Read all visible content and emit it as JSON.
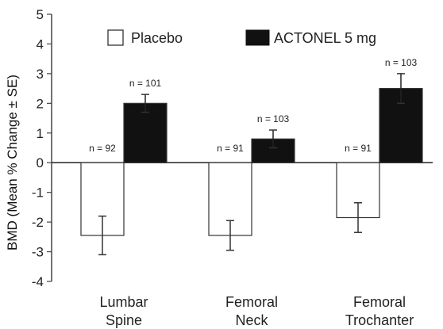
{
  "chart_data": {
    "type": "bar",
    "title": "",
    "categories": [
      "Lumbar Spine",
      "Femoral Neck",
      "Femoral Trochanter"
    ],
    "category_lines": [
      [
        "Lumbar",
        "Spine"
      ],
      [
        "Femoral",
        "Neck"
      ],
      [
        "Femoral",
        "Trochanter"
      ]
    ],
    "series": [
      {
        "name": "Placebo",
        "color": "#ffffff",
        "values": [
          -2.45,
          -2.45,
          -1.85
        ],
        "error": [
          0.65,
          0.5,
          0.5
        ],
        "n_labels": [
          "n = 92",
          "n = 91",
          "n = 91"
        ]
      },
      {
        "name": "ACTONEL 5 mg",
        "color": "#111111",
        "values": [
          2.0,
          0.8,
          2.5
        ],
        "error": [
          0.3,
          0.3,
          0.5
        ],
        "n_labels": [
          "n = 101",
          "n = 103",
          "n = 103"
        ]
      }
    ],
    "ylabel": "BMD (Mean % Change ± SE)",
    "ylim": [
      -4,
      5
    ],
    "yticks": [
      "5",
      "4",
      "3",
      "2",
      "1",
      "0",
      "-1",
      "-2",
      "-3",
      "-4"
    ],
    "grid": false,
    "legend_position": "top"
  }
}
